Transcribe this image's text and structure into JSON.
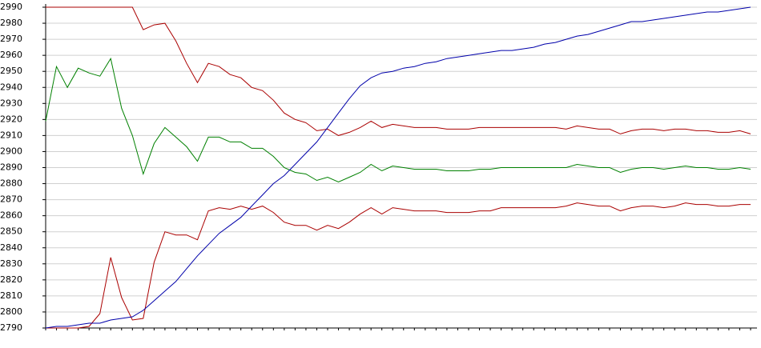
{
  "chart_data": {
    "type": "line",
    "categories": [
      null,
      null,
      null,
      null,
      null,
      null,
      null,
      null,
      null,
      null,
      null,
      null,
      null,
      null,
      null,
      null,
      null,
      null,
      null,
      null,
      null,
      null,
      null,
      null,
      null,
      null,
      null,
      null,
      null,
      null,
      null,
      null,
      null,
      null,
      null,
      null,
      null,
      null,
      null,
      null,
      null,
      null,
      null,
      null,
      null,
      null,
      null,
      null,
      null,
      null,
      null,
      null,
      null,
      null,
      null,
      null,
      null,
      null,
      null,
      null,
      null,
      null,
      null,
      null,
      null,
      null
    ],
    "series": [
      {
        "color": "#aa0000",
        "values": [
          2990,
          2990,
          2990,
          2990,
          2990,
          2990,
          2990,
          2990,
          2990,
          2976,
          2979,
          2980,
          2969,
          2955,
          2943,
          2955,
          2953,
          2948,
          2946,
          2940,
          2938,
          2932,
          2924,
          2920,
          2918,
          2913,
          2914,
          2910,
          2912,
          2915,
          2919,
          2915,
          2917,
          2916,
          2915,
          2915,
          2915,
          2914,
          2914,
          2914,
          2915,
          2915,
          2915,
          2915,
          2915,
          2915,
          2915,
          2915,
          2914,
          2916,
          2915,
          2914,
          2914,
          2911,
          2913,
          2914,
          2914,
          2913,
          2914,
          2914,
          2913,
          2913,
          2912,
          2912,
          2913,
          2911
        ]
      },
      {
        "color": "#008000",
        "values": [
          2919,
          2953,
          2940,
          2952,
          2949,
          2947,
          2958,
          2927,
          2910,
          2886,
          2905,
          2915,
          2909,
          2903,
          2894,
          2909,
          2909,
          2906,
          2906,
          2902,
          2902,
          2897,
          2890,
          2887,
          2886,
          2882,
          2884,
          2881,
          2884,
          2887,
          2892,
          2888,
          2891,
          2890,
          2889,
          2889,
          2889,
          2888,
          2888,
          2888,
          2889,
          2889,
          2890,
          2890,
          2890,
          2890,
          2890,
          2890,
          2890,
          2892,
          2891,
          2890,
          2890,
          2887,
          2889,
          2890,
          2890,
          2889,
          2890,
          2891,
          2890,
          2890,
          2889,
          2889,
          2890,
          2889
        ]
      },
      {
        "color": "#aa0000",
        "values": [
          2790,
          2790,
          2790,
          2790,
          2791,
          2799,
          2834,
          2809,
          2795,
          2796,
          2831,
          2850,
          2848,
          2848,
          2845,
          2863,
          2865,
          2864,
          2866,
          2864,
          2866,
          2862,
          2856,
          2854,
          2854,
          2851,
          2854,
          2852,
          2856,
          2861,
          2865,
          2861,
          2865,
          2864,
          2863,
          2863,
          2863,
          2862,
          2862,
          2862,
          2863,
          2863,
          2865,
          2865,
          2865,
          2865,
          2865,
          2865,
          2866,
          2868,
          2867,
          2866,
          2866,
          2863,
          2865,
          2866,
          2866,
          2865,
          2866,
          2868,
          2867,
          2867,
          2866,
          2866,
          2867,
          2867
        ]
      },
      {
        "color": "#0000aa",
        "values": [
          2790,
          2791,
          2791,
          2792,
          2793,
          2793,
          2795,
          2796,
          2797,
          2801,
          2807,
          2813,
          2819,
          2827,
          2835,
          2842,
          2849,
          2854,
          2859,
          2866,
          2873,
          2880,
          2885,
          2892,
          2899,
          2906,
          2915,
          2924,
          2933,
          2941,
          2946,
          2949,
          2950,
          2952,
          2953,
          2955,
          2956,
          2958,
          2959,
          2960,
          2961,
          2962,
          2963,
          2963,
          2964,
          2965,
          2967,
          2968,
          2970,
          2972,
          2973,
          2975,
          2977,
          2979,
          2981,
          2981,
          2982,
          2983,
          2984,
          2985,
          2986,
          2987,
          2987,
          2988,
          2989,
          2990
        ]
      }
    ],
    "ylim": [
      2790,
      2990
    ],
    "yticks": [
      2790,
      2800,
      2810,
      2820,
      2830,
      2840,
      2850,
      2860,
      2870,
      2880,
      2890,
      2900,
      2910,
      2920,
      2930,
      2940,
      2950,
      2960,
      2970,
      2980,
      2990
    ],
    "grid": true
  }
}
